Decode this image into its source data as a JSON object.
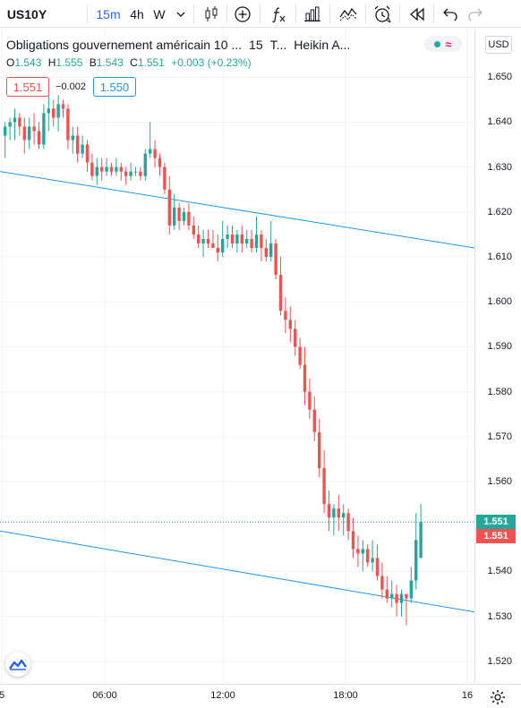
{
  "toolbar": {
    "symbol": "US10Y",
    "intervals": [
      "15m",
      "4h",
      "W"
    ],
    "active_interval": "15m",
    "icons": [
      "chevron-down-icon",
      "candlestick-icon",
      "plus-circle-icon",
      "function-icon",
      "bar-chart-icon",
      "line-chart-icon",
      "alarm-clock-icon",
      "rewind-icon",
      "undo-icon",
      "redo-icon"
    ]
  },
  "legend": {
    "title": "Obligations gouvernement américain 10 ...",
    "interval": "15",
    "exchange": "T...",
    "chart_style": "Heikin A...",
    "open_label": "O",
    "open": "1.543",
    "high_label": "H",
    "high": "1.555",
    "low_label": "B",
    "low": "1.543",
    "close_label": "C",
    "close": "1.551",
    "change": "+0.003 (+0.23%)",
    "sell_price": "1.551",
    "spread": "−0.002",
    "buy_price": "1.550"
  },
  "price_scale": {
    "currency": "USD",
    "last_price_tag": "1.551",
    "last_price_tag_red": "1.551"
  },
  "time_scale": {
    "labels": [
      "5",
      "06:00",
      "12:00",
      "18:00",
      "16"
    ]
  },
  "colors": {
    "up": "#26a69a",
    "down": "#ef5350",
    "trendline": "#2196f3",
    "grid": "#f0f3fa",
    "accent": "#2962ff"
  },
  "chart_data": {
    "type": "candlestick",
    "style": "Heikin Ashi",
    "ylim": [
      1.515,
      1.661
    ],
    "yticks": [
      "1.650",
      "1.640",
      "1.630",
      "1.620",
      "1.610",
      "1.600",
      "1.590",
      "1.580",
      "1.570",
      "1.560",
      "1.550",
      "1.540",
      "1.530",
      "1.520"
    ],
    "xticks": [
      "5",
      "06:00",
      "12:00",
      "18:00",
      "16"
    ],
    "last_price": 1.551,
    "candles": [
      [
        1.637,
        1.64,
        1.632,
        1.639
      ],
      [
        1.639,
        1.641,
        1.636,
        1.64
      ],
      [
        1.64,
        1.643,
        1.636,
        1.641
      ],
      [
        1.641,
        1.642,
        1.637,
        1.639
      ],
      [
        1.639,
        1.641,
        1.633,
        1.636
      ],
      [
        1.636,
        1.641,
        1.634,
        1.639
      ],
      [
        1.639,
        1.642,
        1.635,
        1.638
      ],
      [
        1.638,
        1.64,
        1.634,
        1.635
      ],
      [
        1.635,
        1.644,
        1.634,
        1.642
      ],
      [
        1.642,
        1.646,
        1.638,
        1.643
      ],
      [
        1.643,
        1.645,
        1.639,
        1.641
      ],
      [
        1.641,
        1.646,
        1.638,
        1.644
      ],
      [
        1.644,
        1.645,
        1.641,
        1.643
      ],
      [
        1.643,
        1.644,
        1.634,
        1.636
      ],
      [
        1.636,
        1.639,
        1.633,
        1.637
      ],
      [
        1.637,
        1.639,
        1.631,
        1.633
      ],
      [
        1.633,
        1.637,
        1.632,
        1.635
      ],
      [
        1.635,
        1.636,
        1.629,
        1.631
      ],
      [
        1.631,
        1.633,
        1.627,
        1.628
      ],
      [
        1.628,
        1.632,
        1.626,
        1.63
      ],
      [
        1.63,
        1.632,
        1.627,
        1.629
      ],
      [
        1.629,
        1.632,
        1.628,
        1.63
      ],
      [
        1.63,
        1.631,
        1.628,
        1.629
      ],
      [
        1.629,
        1.632,
        1.628,
        1.63
      ],
      [
        1.63,
        1.631,
        1.627,
        1.629
      ],
      [
        1.629,
        1.63,
        1.626,
        1.628
      ],
      [
        1.628,
        1.631,
        1.627,
        1.629
      ],
      [
        1.629,
        1.63,
        1.628,
        1.629
      ],
      [
        1.629,
        1.63,
        1.627,
        1.628
      ],
      [
        1.628,
        1.634,
        1.627,
        1.633
      ],
      [
        1.633,
        1.64,
        1.632,
        1.634
      ],
      [
        1.634,
        1.636,
        1.63,
        1.632
      ],
      [
        1.632,
        1.633,
        1.628,
        1.63
      ],
      [
        1.63,
        1.631,
        1.624,
        1.625
      ],
      [
        1.625,
        1.628,
        1.615,
        1.617
      ],
      [
        1.617,
        1.624,
        1.616,
        1.621
      ],
      [
        1.621,
        1.622,
        1.616,
        1.618
      ],
      [
        1.618,
        1.621,
        1.617,
        1.62
      ],
      [
        1.62,
        1.622,
        1.616,
        1.617
      ],
      [
        1.617,
        1.619,
        1.614,
        1.615
      ],
      [
        1.615,
        1.617,
        1.612,
        1.613
      ],
      [
        1.613,
        1.616,
        1.61,
        1.614
      ],
      [
        1.614,
        1.616,
        1.612,
        1.613
      ],
      [
        1.613,
        1.616,
        1.612,
        1.612
      ],
      [
        1.612,
        1.615,
        1.609,
        1.611
      ],
      [
        1.611,
        1.618,
        1.61,
        1.614
      ],
      [
        1.614,
        1.617,
        1.612,
        1.615
      ],
      [
        1.615,
        1.617,
        1.612,
        1.613
      ],
      [
        1.613,
        1.616,
        1.611,
        1.615
      ],
      [
        1.615,
        1.617,
        1.611,
        1.613
      ],
      [
        1.613,
        1.616,
        1.612,
        1.614
      ],
      [
        1.614,
        1.616,
        1.611,
        1.612
      ],
      [
        1.612,
        1.619,
        1.611,
        1.615
      ],
      [
        1.615,
        1.616,
        1.609,
        1.612
      ],
      [
        1.612,
        1.614,
        1.609,
        1.61
      ],
      [
        1.61,
        1.618,
        1.609,
        1.613
      ],
      [
        1.613,
        1.614,
        1.605,
        1.606
      ],
      [
        1.606,
        1.61,
        1.597,
        1.598
      ],
      [
        1.598,
        1.601,
        1.593,
        1.596
      ],
      [
        1.596,
        1.599,
        1.591,
        1.594
      ],
      [
        1.594,
        1.596,
        1.588,
        1.59
      ],
      [
        1.59,
        1.592,
        1.585,
        1.586
      ],
      [
        1.586,
        1.59,
        1.577,
        1.58
      ],
      [
        1.58,
        1.583,
        1.574,
        1.576
      ],
      [
        1.576,
        1.579,
        1.569,
        1.571
      ],
      [
        1.571,
        1.574,
        1.561,
        1.563
      ],
      [
        1.563,
        1.567,
        1.553,
        1.555
      ],
      [
        1.555,
        1.558,
        1.549,
        1.552
      ],
      [
        1.552,
        1.555,
        1.548,
        1.554
      ],
      [
        1.554,
        1.557,
        1.549,
        1.552
      ],
      [
        1.552,
        1.555,
        1.548,
        1.553
      ],
      [
        1.553,
        1.554,
        1.547,
        1.549
      ],
      [
        1.549,
        1.552,
        1.543,
        1.545
      ],
      [
        1.545,
        1.548,
        1.541,
        1.544
      ],
      [
        1.544,
        1.547,
        1.54,
        1.545
      ],
      [
        1.545,
        1.546,
        1.541,
        1.542
      ],
      [
        1.542,
        1.547,
        1.54,
        1.543
      ],
      [
        1.543,
        1.546,
        1.538,
        1.539
      ],
      [
        1.539,
        1.542,
        1.534,
        1.536
      ],
      [
        1.536,
        1.539,
        1.533,
        1.534
      ],
      [
        1.534,
        1.538,
        1.532,
        1.535
      ],
      [
        1.535,
        1.537,
        1.53,
        1.533
      ],
      [
        1.533,
        1.536,
        1.53,
        1.535
      ],
      [
        1.535,
        1.535,
        1.528,
        1.534
      ],
      [
        1.534,
        1.541,
        1.533,
        1.538
      ],
      [
        1.538,
        1.553,
        1.536,
        1.547
      ],
      [
        1.543,
        1.555,
        1.543,
        1.551
      ]
    ],
    "trendlines": [
      {
        "x_from": "5",
        "x_to": "16",
        "y_from": 1.629,
        "y_to": 1.612
      },
      {
        "x_from": "5",
        "x_to": "16",
        "y_from": 1.549,
        "y_to": 1.531
      }
    ]
  }
}
